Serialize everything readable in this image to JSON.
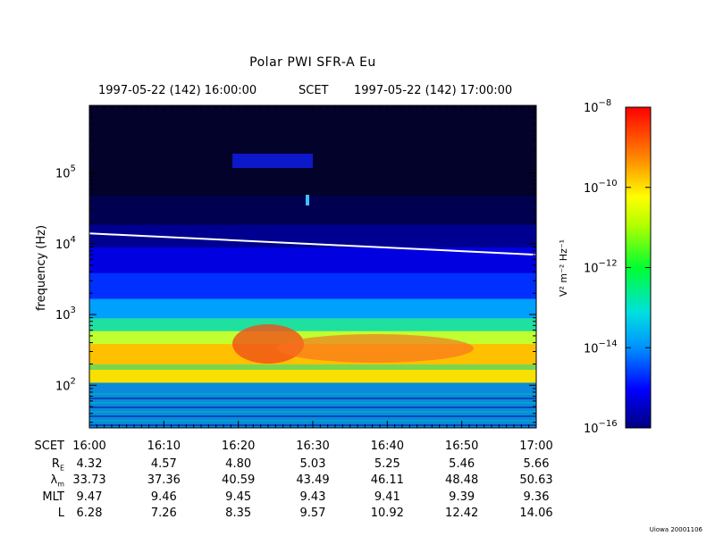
{
  "chart_data": {
    "type": "heatmap",
    "title": "Polar PWI SFR-A Eu",
    "header": {
      "start": "1997-05-22 (142) 16:00:00",
      "label": "SCET",
      "end": "1997-05-22 (142) 17:00:00"
    },
    "ylabel": "frequency (Hz)",
    "y_scale": "log",
    "ylim": [
      25,
      900000
    ],
    "y_ticks": [
      {
        "value": 100,
        "base": "10",
        "exp": "2"
      },
      {
        "value": 1000,
        "base": "10",
        "exp": "3"
      },
      {
        "value": 10000,
        "base": "10",
        "exp": "4"
      },
      {
        "value": 100000,
        "base": "10",
        "exp": "5"
      }
    ],
    "x_ticks": [
      "16:00",
      "16:10",
      "16:20",
      "16:30",
      "16:40",
      "16:50",
      "17:00"
    ],
    "colorbar": {
      "label": "V² m⁻² Hz⁻¹",
      "scale": "log",
      "range": [
        1e-16,
        1e-08
      ],
      "ticks": [
        {
          "value": 1e-08,
          "base": "10",
          "exp": "−8"
        },
        {
          "value": 1e-10,
          "base": "10",
          "exp": "−10"
        },
        {
          "value": 1e-12,
          "base": "10",
          "exp": "−12"
        },
        {
          "value": 1e-14,
          "base": "10",
          "exp": "−14"
        },
        {
          "value": 1e-16,
          "base": "10",
          "exp": "−16"
        }
      ]
    },
    "white_line": {
      "start_hz": 14000,
      "end_hz": 7000
    }
  },
  "ephemeris": {
    "rows": [
      {
        "label": "SCET",
        "values": [
          "16:00",
          "16:10",
          "16:20",
          "16:30",
          "16:40",
          "16:50",
          "17:00"
        ]
      },
      {
        "label": "R",
        "sub": "E",
        "values": [
          "4.32",
          "4.57",
          "4.80",
          "5.03",
          "5.25",
          "5.46",
          "5.66"
        ]
      },
      {
        "label": "λ",
        "sub": "m",
        "values": [
          "33.73",
          "37.36",
          "40.59",
          "43.49",
          "46.11",
          "48.48",
          "50.63"
        ]
      },
      {
        "label": "MLT",
        "values": [
          "9.47",
          "9.46",
          "9.45",
          "9.43",
          "9.41",
          "9.39",
          "9.36"
        ]
      },
      {
        "label": "L",
        "values": [
          "6.28",
          "7.26",
          "8.35",
          "9.57",
          "10.92",
          "12.42",
          "14.06"
        ]
      }
    ]
  },
  "stamp": "Uiowa 20001106"
}
